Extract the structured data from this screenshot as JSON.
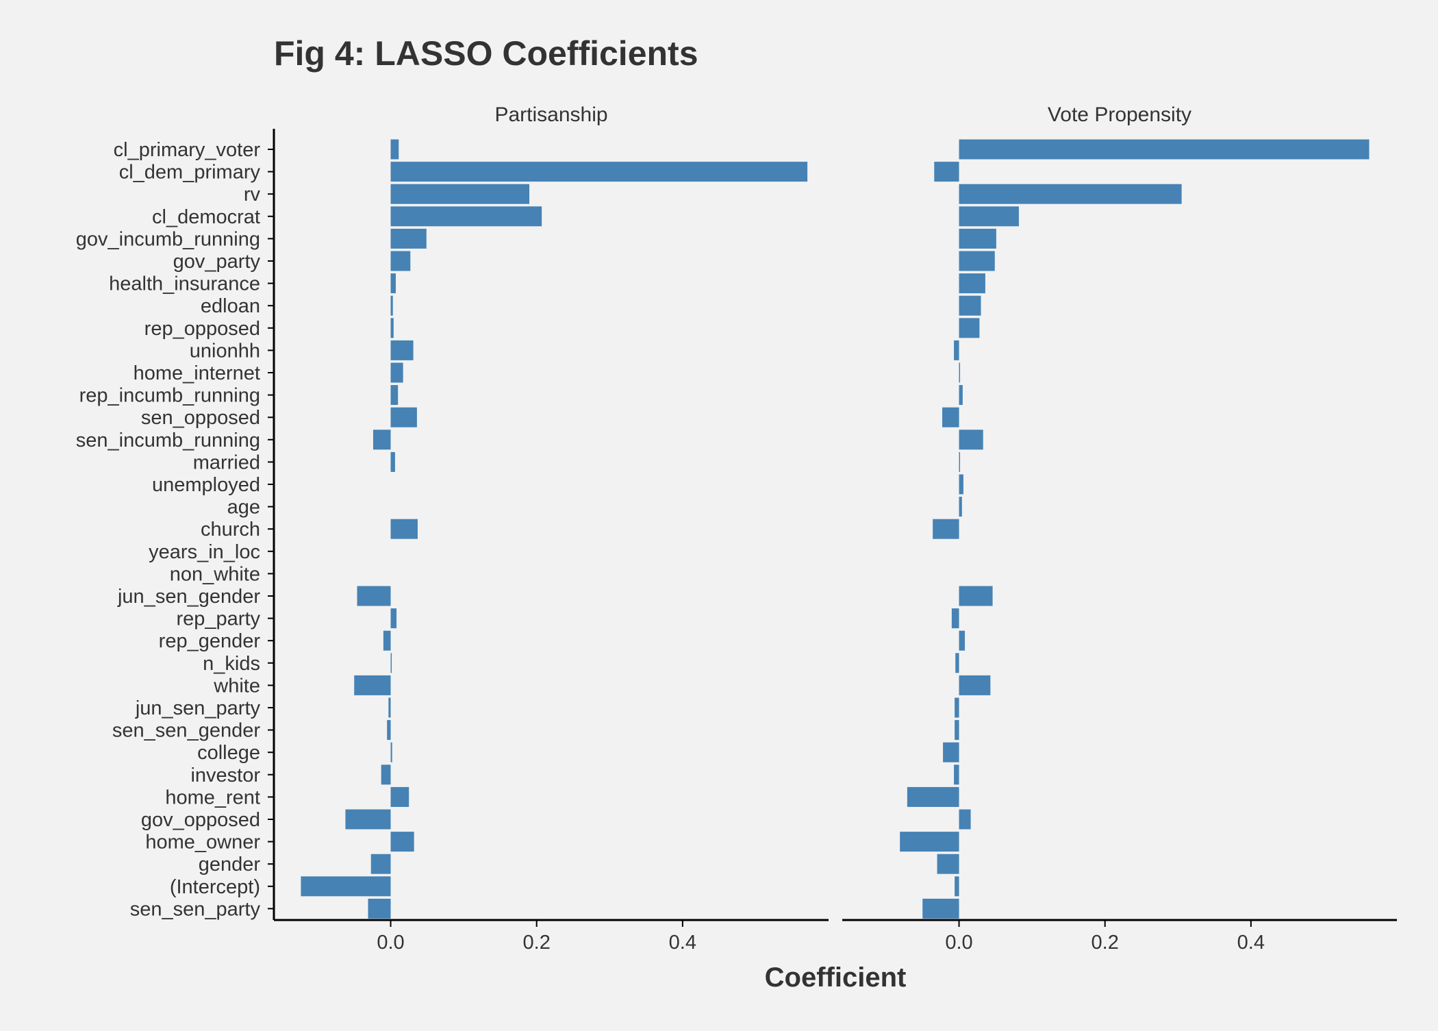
{
  "colors": {
    "background": "#f2f2f2",
    "bar": "#4682b4",
    "axis": "#000000",
    "text": "#333333"
  },
  "chart_data": {
    "type": "bar",
    "orientation": "horizontal",
    "title": "Fig 4: LASSO Coefficients",
    "xlabel": "Coefficient",
    "ylabel": "",
    "xlim": [
      -0.16,
      0.6
    ],
    "xticks": [
      0.0,
      0.2,
      0.4
    ],
    "xtick_labels": [
      "0.0",
      "0.2",
      "0.4"
    ],
    "grid": false,
    "categories": [
      "cl_primary_voter",
      "cl_dem_primary",
      "rv",
      "cl_democrat",
      "gov_incumb_running",
      "gov_party",
      "health_insurance",
      "edloan",
      "rep_opposed",
      "unionhh",
      "home_internet",
      "rep_incumb_running",
      "sen_opposed",
      "sen_incumb_running",
      "married",
      "unemployed",
      "age",
      "church",
      "years_in_loc",
      "non_white",
      "jun_sen_gender",
      "rep_party",
      "rep_gender",
      "n_kids",
      "white",
      "jun_sen_party",
      "sen_sen_gender",
      "college",
      "investor",
      "home_rent",
      "gov_opposed",
      "home_owner",
      "gender",
      "(Intercept)",
      "sen_sen_party"
    ],
    "panels": [
      {
        "name": "Partisanship",
        "values": [
          0.011,
          0.571,
          0.19,
          0.207,
          0.049,
          0.027,
          0.007,
          0.003,
          0.004,
          0.031,
          0.017,
          0.01,
          0.036,
          -0.024,
          0.006,
          0.0,
          0.0,
          0.037,
          0.0,
          0.0,
          -0.046,
          0.008,
          -0.01,
          0.001,
          -0.05,
          -0.003,
          -0.005,
          0.002,
          -0.013,
          0.025,
          -0.062,
          0.032,
          -0.027,
          -0.123,
          -0.031
        ]
      },
      {
        "name": "Vote Propensity",
        "values": [
          0.562,
          -0.034,
          0.305,
          0.082,
          0.051,
          0.049,
          0.036,
          0.03,
          0.028,
          -0.007,
          0.001,
          0.005,
          -0.023,
          0.033,
          0.001,
          0.006,
          0.004,
          -0.036,
          0.0,
          0.0,
          0.046,
          -0.01,
          0.008,
          -0.005,
          0.043,
          -0.006,
          -0.006,
          -0.022,
          -0.007,
          -0.071,
          0.016,
          -0.081,
          -0.03,
          -0.006,
          -0.05
        ]
      }
    ]
  }
}
